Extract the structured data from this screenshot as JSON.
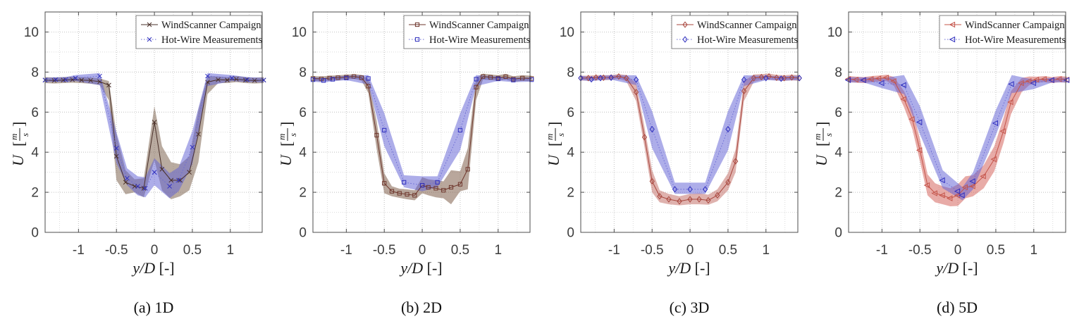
{
  "figure": {
    "background": "#ffffff",
    "axis_color": "#4d4d4d",
    "tick_label_color": "#3d3d3d",
    "grid_minor_color": "#dcdcdc",
    "grid_major_color": "#c6c6c6",
    "legend_border_color": "#666666",
    "legend_text_color": "#1a1a1a"
  },
  "chart_data": [
    {
      "type": "line",
      "caption": "(a) 1D",
      "xlabel_var": "y/D",
      "xlabel_unit": "[-]",
      "ylabel_var": "U",
      "ylabel_frac_num": "m",
      "ylabel_frac_den": "s",
      "xlim": [
        -1.44,
        1.42
      ],
      "ylim": [
        0,
        11
      ],
      "xticks": [
        -1,
        -0.5,
        0,
        0.5,
        1
      ],
      "xtick_labels": [
        "-1",
        "-0.5",
        "0",
        "0.5",
        "1"
      ],
      "yticks": [
        0,
        2,
        4,
        6,
        8,
        10
      ],
      "ytick_labels": [
        "0",
        "2",
        "4",
        "6",
        "8",
        "10"
      ],
      "grid": "dotted-minor",
      "legend_position": "top-right",
      "series": [
        {
          "name": "WindScanner Campaign",
          "marker": "x",
          "line_style": "solid",
          "color": "#4a3029",
          "line_color": "#4a3029",
          "band_color": "rgba(128,102,82,0.55)",
          "x": [
            -1.44,
            -1.32,
            -1.2,
            -1.08,
            -0.96,
            -0.84,
            -0.72,
            -0.6,
            -0.5,
            -0.38,
            -0.26,
            -0.14,
            0,
            0.1,
            0.22,
            0.34,
            0.46,
            0.58,
            0.7,
            0.84,
            0.96,
            1.08,
            1.2,
            1.32,
            1.44
          ],
          "y": [
            7.6,
            7.58,
            7.6,
            7.62,
            7.6,
            7.58,
            7.52,
            7.35,
            3.8,
            2.5,
            2.3,
            2.2,
            5.5,
            3.15,
            2.6,
            2.6,
            3.0,
            4.9,
            7.5,
            7.62,
            7.6,
            7.65,
            7.6,
            7.58,
            7.6
          ],
          "band_lo": [
            7.45,
            7.43,
            7.45,
            7.47,
            7.45,
            7.42,
            7.35,
            6.6,
            2.6,
            1.9,
            2.0,
            1.75,
            3.6,
            2.1,
            1.65,
            1.8,
            2.1,
            3.5,
            6.9,
            7.45,
            7.45,
            7.5,
            7.45,
            7.43,
            7.45
          ],
          "band_hi": [
            7.75,
            7.73,
            7.75,
            7.77,
            7.75,
            7.73,
            7.68,
            7.55,
            4.9,
            3.1,
            2.65,
            2.7,
            6.3,
            4.3,
            3.5,
            3.4,
            3.8,
            6.1,
            7.8,
            7.78,
            7.75,
            7.8,
            7.75,
            7.72,
            7.75
          ]
        },
        {
          "name": "Hot-Wire Measurements",
          "marker": "x",
          "line_style": "dotted",
          "color": "#2e2ebe",
          "line_color": "#6a6ad4",
          "band_color": "rgba(97,97,212,0.52)",
          "x": [
            -1.44,
            -1.3,
            -1.17,
            -1.04,
            -0.72,
            -0.5,
            -0.36,
            -0.22,
            -0.12,
            0,
            0.2,
            0.32,
            0.5,
            0.7,
            1.02,
            1.22,
            1.44
          ],
          "y": [
            7.6,
            7.62,
            7.62,
            7.7,
            7.8,
            4.2,
            2.7,
            2.3,
            2.2,
            3.0,
            2.3,
            2.6,
            4.25,
            7.8,
            7.7,
            7.62,
            7.6
          ],
          "band_lo": [
            7.5,
            7.52,
            7.5,
            7.55,
            7.35,
            3.45,
            2.35,
            1.85,
            1.75,
            2.35,
            1.7,
            2.05,
            3.4,
            7.3,
            7.55,
            7.5,
            7.48
          ],
          "band_hi": [
            7.72,
            7.74,
            7.75,
            7.85,
            7.95,
            5.0,
            3.2,
            2.8,
            2.75,
            3.7,
            2.95,
            3.25,
            5.05,
            7.95,
            7.85,
            7.75,
            7.72
          ]
        }
      ]
    },
    {
      "type": "line",
      "caption": "(b) 2D",
      "xlabel_var": "y/D",
      "xlabel_unit": "[-]",
      "ylabel_var": "U",
      "ylabel_frac_num": "m",
      "ylabel_frac_den": "s",
      "xlim": [
        -1.44,
        1.42
      ],
      "ylim": [
        0,
        11
      ],
      "xticks": [
        -1,
        -0.5,
        0,
        0.5,
        1
      ],
      "xtick_labels": [
        "-1",
        "-0.5",
        "0",
        "0.5",
        "1"
      ],
      "yticks": [
        0,
        2,
        4,
        6,
        8,
        10
      ],
      "ytick_labels": [
        "0",
        "2",
        "4",
        "6",
        "8",
        "10"
      ],
      "grid": "dotted-minor",
      "legend_position": "top-right",
      "series": [
        {
          "name": "WindScanner Campaign",
          "marker": "square",
          "line_style": "solid",
          "color": "#6d352b",
          "line_color": "#6d352b",
          "band_color": "rgba(128,95,75,0.55)",
          "x": [
            -1.44,
            -1.33,
            -1.22,
            -1.11,
            -1.0,
            -0.9,
            -0.8,
            -0.71,
            -0.6,
            -0.5,
            -0.4,
            -0.3,
            -0.2,
            -0.1,
            0,
            0.08,
            0.18,
            0.28,
            0.38,
            0.5,
            0.6,
            0.71,
            0.8,
            0.9,
            1.0,
            1.1,
            1.2,
            1.32,
            1.44
          ],
          "y": [
            7.68,
            7.66,
            7.7,
            7.72,
            7.75,
            7.78,
            7.72,
            7.3,
            4.85,
            2.45,
            2.05,
            1.95,
            1.9,
            1.85,
            2.35,
            2.25,
            2.2,
            2.1,
            2.25,
            2.4,
            3.15,
            7.25,
            7.78,
            7.74,
            7.7,
            7.77,
            7.65,
            7.7,
            7.68
          ],
          "band_lo": [
            7.56,
            7.54,
            7.58,
            7.6,
            7.63,
            7.66,
            7.58,
            6.95,
            4.15,
            1.95,
            1.8,
            1.72,
            1.65,
            1.6,
            1.95,
            1.85,
            1.75,
            1.7,
            1.4,
            2.05,
            2.15,
            6.6,
            7.62,
            7.6,
            7.56,
            7.63,
            7.51,
            7.56,
            7.54
          ],
          "band_hi": [
            7.8,
            7.78,
            7.82,
            7.84,
            7.87,
            7.9,
            7.86,
            7.65,
            5.55,
            2.95,
            2.3,
            2.18,
            2.15,
            2.1,
            2.75,
            2.65,
            2.6,
            2.55,
            3.1,
            3.05,
            4.2,
            7.7,
            7.92,
            7.88,
            7.84,
            7.91,
            7.79,
            7.84,
            7.82
          ]
        },
        {
          "name": "Hot-Wire Measurements",
          "marker": "square",
          "line_style": "dotted",
          "color": "#2e2ebe",
          "line_color": "#6a6ad4",
          "band_color": "rgba(97,97,212,0.52)",
          "x": [
            -1.44,
            -1.3,
            -1.18,
            -1.0,
            -0.71,
            -0.5,
            -0.24,
            0,
            0.2,
            0.5,
            0.71,
            1.0,
            1.2,
            1.44
          ],
          "y": [
            7.62,
            7.58,
            7.64,
            7.7,
            7.68,
            5.1,
            2.5,
            2.35,
            2.5,
            5.1,
            7.65,
            7.66,
            7.6,
            7.62
          ],
          "band_lo": [
            7.52,
            7.48,
            7.54,
            7.6,
            7.38,
            4.3,
            2.25,
            2.05,
            2.25,
            4.1,
            7.3,
            7.56,
            7.5,
            7.52
          ],
          "band_hi": [
            7.74,
            7.7,
            7.76,
            7.82,
            7.85,
            5.95,
            2.85,
            2.8,
            2.8,
            5.95,
            7.85,
            7.78,
            7.72,
            7.74
          ]
        }
      ]
    },
    {
      "type": "line",
      "caption": "(c) 3D",
      "xlabel_var": "y/D",
      "xlabel_unit": "[-]",
      "ylabel_var": "U",
      "ylabel_frac_num": "m",
      "ylabel_frac_den": "s",
      "xlim": [
        -1.44,
        1.42
      ],
      "ylim": [
        0,
        11
      ],
      "xticks": [
        -1,
        -0.5,
        0,
        0.5,
        1
      ],
      "xtick_labels": [
        "-1",
        "-0.5",
        "0",
        "0.5",
        "1"
      ],
      "yticks": [
        0,
        2,
        4,
        6,
        8,
        10
      ],
      "ytick_labels": [
        "0",
        "2",
        "4",
        "6",
        "8",
        "10"
      ],
      "grid": "dotted-minor",
      "legend_position": "top-right",
      "series": [
        {
          "name": "WindScanner Campaign",
          "marker": "diamond",
          "line_style": "solid",
          "color": "#a8463d",
          "line_color": "#a8463d",
          "band_color": "rgba(192,102,94,0.5)",
          "x": [
            -1.44,
            -1.34,
            -1.24,
            -1.14,
            -1.04,
            -0.94,
            -0.84,
            -0.71,
            -0.6,
            -0.5,
            -0.4,
            -0.28,
            -0.14,
            0,
            0.12,
            0.24,
            0.36,
            0.5,
            0.6,
            0.71,
            0.84,
            0.94,
            1.04,
            1.14,
            1.24,
            1.34,
            1.44
          ],
          "y": [
            7.7,
            7.7,
            7.73,
            7.72,
            7.73,
            7.78,
            7.7,
            7.0,
            4.75,
            2.55,
            1.8,
            1.65,
            1.55,
            1.65,
            1.65,
            1.6,
            1.85,
            2.5,
            3.55,
            7.05,
            7.7,
            7.75,
            7.78,
            7.72,
            7.7,
            7.73,
            7.7
          ],
          "band_lo": [
            7.58,
            7.58,
            7.61,
            7.6,
            7.61,
            7.66,
            7.55,
            6.55,
            4.25,
            2.0,
            1.5,
            1.4,
            1.35,
            1.4,
            1.4,
            1.38,
            1.55,
            2.1,
            3.0,
            6.55,
            7.52,
            7.6,
            7.63,
            7.58,
            7.56,
            7.59,
            7.56
          ],
          "band_hi": [
            7.82,
            7.82,
            7.85,
            7.84,
            7.85,
            7.9,
            7.85,
            7.45,
            5.25,
            3.1,
            2.1,
            1.92,
            1.8,
            1.92,
            1.95,
            1.88,
            2.15,
            2.95,
            4.15,
            7.55,
            7.88,
            7.9,
            7.93,
            7.86,
            7.84,
            7.87,
            7.84
          ]
        },
        {
          "name": "Hot-Wire Measurements",
          "marker": "diamond",
          "line_style": "dotted",
          "color": "#2e2ebe",
          "line_color": "#6a6ad4",
          "band_color": "rgba(97,97,212,0.52)",
          "x": [
            -1.44,
            -1.3,
            -1.18,
            -1.04,
            -0.71,
            -0.5,
            -0.2,
            0,
            0.2,
            0.5,
            0.71,
            1.0,
            1.2,
            1.44
          ],
          "y": [
            7.7,
            7.64,
            7.7,
            7.72,
            7.62,
            5.15,
            2.15,
            2.15,
            2.15,
            5.15,
            7.62,
            7.7,
            7.67,
            7.7
          ],
          "band_lo": [
            7.6,
            7.54,
            7.6,
            7.62,
            7.35,
            4.2,
            1.92,
            1.92,
            1.92,
            4.1,
            7.3,
            7.6,
            7.57,
            7.6
          ],
          "band_hi": [
            7.82,
            7.76,
            7.82,
            7.84,
            7.84,
            6.05,
            2.48,
            2.48,
            2.48,
            6.05,
            7.84,
            7.82,
            7.79,
            7.82
          ]
        }
      ]
    },
    {
      "type": "line",
      "caption": "(d) 5D",
      "xlabel_var": "y/D",
      "xlabel_unit": "[-]",
      "ylabel_var": "U",
      "ylabel_frac_num": "m",
      "ylabel_frac_den": "s",
      "xlim": [
        -1.44,
        1.42
      ],
      "ylim": [
        0,
        11
      ],
      "xticks": [
        -1,
        -0.5,
        0,
        0.5,
        1
      ],
      "xtick_labels": [
        "-1",
        "-0.5",
        "0",
        "0.5",
        "1"
      ],
      "yticks": [
        0,
        2,
        4,
        6,
        8,
        10
      ],
      "ytick_labels": [
        "0",
        "2",
        "4",
        "6",
        "8",
        "10"
      ],
      "grid": "dotted-minor",
      "legend_position": "top-right",
      "series": [
        {
          "name": "WindScanner Campaign",
          "marker": "triangle-left",
          "line_style": "solid",
          "color": "#c4544a",
          "line_color": "#c4544a",
          "band_color": "rgba(214,102,94,0.55)",
          "x": [
            -1.44,
            -1.34,
            -1.24,
            -1.14,
            -1.04,
            -0.94,
            -0.84,
            -0.71,
            -0.6,
            -0.5,
            -0.4,
            -0.3,
            -0.2,
            -0.1,
            0,
            0.1,
            0.2,
            0.34,
            0.48,
            0.6,
            0.7,
            0.84,
            0.94,
            1.04,
            1.14,
            1.24,
            1.34,
            1.44
          ],
          "y": [
            7.65,
            7.62,
            7.6,
            7.65,
            7.68,
            7.72,
            7.55,
            6.65,
            5.65,
            4.1,
            2.35,
            1.95,
            1.85,
            1.7,
            1.85,
            2.25,
            2.3,
            2.8,
            3.65,
            5.05,
            6.5,
            7.45,
            7.55,
            7.62,
            7.65,
            7.6,
            7.65,
            7.62
          ],
          "band_lo": [
            7.5,
            7.47,
            7.45,
            7.5,
            7.53,
            7.55,
            7.3,
            6.25,
            5.15,
            3.55,
            1.85,
            1.5,
            1.4,
            1.3,
            1.32,
            1.7,
            1.8,
            2.2,
            3.05,
            4.45,
            5.9,
            7.0,
            7.35,
            7.47,
            7.5,
            7.45,
            7.5,
            7.47
          ],
          "band_hi": [
            7.8,
            7.77,
            7.75,
            7.8,
            7.83,
            7.87,
            7.75,
            7.05,
            6.15,
            4.65,
            2.9,
            2.45,
            2.3,
            2.2,
            2.4,
            2.8,
            2.85,
            3.35,
            4.3,
            5.7,
            7.05,
            7.7,
            7.78,
            7.77,
            7.8,
            7.75,
            7.8,
            7.77
          ]
        },
        {
          "name": "Hot-Wire Measurements",
          "marker": "triangle-left",
          "line_style": "dotted",
          "color": "#2e2ebe",
          "line_color": "#6a6ad4",
          "band_color": "rgba(97,97,212,0.52)",
          "x": [
            -1.44,
            -1.24,
            -1.0,
            -0.71,
            -0.5,
            -0.2,
            0,
            0.06,
            0.2,
            0.5,
            0.71,
            1.0,
            1.24,
            1.44
          ],
          "y": [
            7.6,
            7.6,
            7.45,
            7.35,
            5.5,
            2.6,
            2.05,
            1.85,
            2.55,
            5.45,
            7.4,
            7.45,
            7.6,
            7.6
          ],
          "band_lo": [
            7.48,
            7.48,
            7.2,
            6.9,
            4.9,
            2.2,
            1.75,
            1.6,
            2.15,
            4.85,
            6.95,
            7.15,
            7.48,
            7.48
          ],
          "band_hi": [
            7.74,
            7.74,
            7.7,
            7.85,
            6.3,
            3.1,
            2.45,
            2.25,
            3.0,
            6.1,
            7.85,
            7.62,
            7.72,
            7.72
          ]
        }
      ]
    }
  ]
}
